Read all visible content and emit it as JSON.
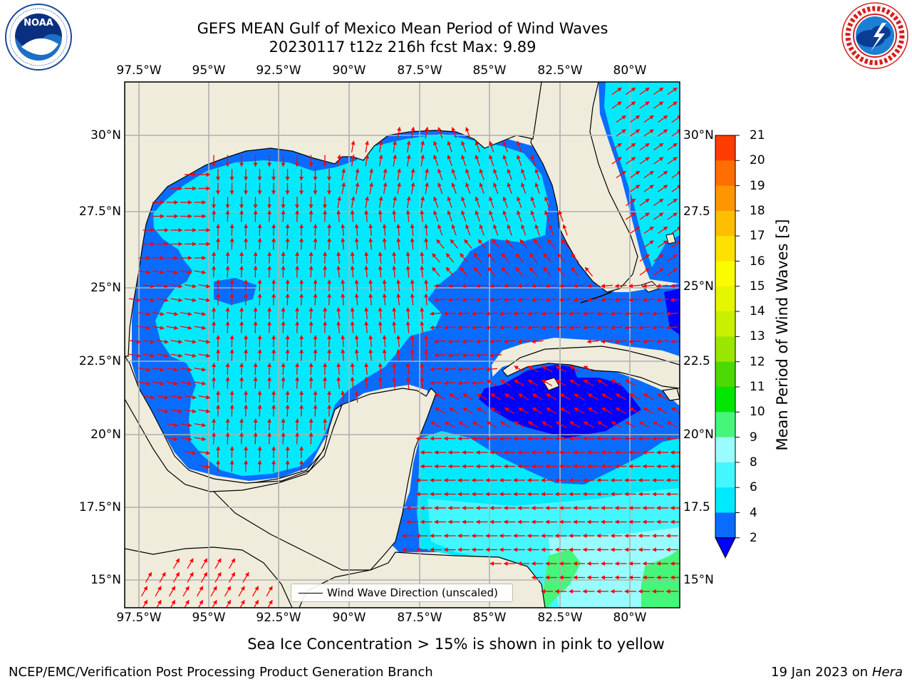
{
  "header": {
    "title_line1": "GEFS MEAN Gulf of Mexico Mean Period of Wind Waves",
    "title_line2": "20230117 t12z 216h fcst   Max: 9.89"
  },
  "logos": {
    "left": "noaa-logo",
    "right": "national-weather-service-logo"
  },
  "map": {
    "region": "Gulf of Mexico",
    "lon_labels": [
      "97.5°W",
      "95°W",
      "92.5°W",
      "90°W",
      "87.5°W",
      "85°W",
      "82.5°W",
      "80°W"
    ],
    "lat_labels_left": [
      "30°N",
      "27.5°N",
      "25°N",
      "22.5°N",
      "20°N",
      "17.5°N",
      "15°N"
    ],
    "lat_labels_right": [
      "30°N",
      "27.5",
      "25°N",
      "22.5",
      "20°N",
      "17.5",
      "15°N"
    ],
    "lon_range": [
      -98,
      -78.2
    ],
    "lat_range": [
      14,
      31.8
    ],
    "arrow_color": "#ff0000",
    "land_color": "#efecdc",
    "legend_label": "Wind Wave Direction (unscaled)"
  },
  "colorbar": {
    "label": "Mean Period of Wind Waves [s]",
    "ticks": [
      "2",
      "4",
      "6",
      "8",
      "9",
      "10",
      "11",
      "12",
      "13",
      "14",
      "15",
      "16",
      "17",
      "18",
      "19",
      "20",
      "21"
    ],
    "colors": [
      "#0a6cff",
      "#00eaff",
      "#44f6ff",
      "#99fcff",
      "#46f67a",
      "#00e600",
      "#4ad900",
      "#99e600",
      "#c8f000",
      "#e6f500",
      "#fcfc00",
      "#ffe100",
      "#ffbe00",
      "#ff9600",
      "#ff6e00",
      "#ff3c00",
      "#ff0000"
    ],
    "under_color": "#0000ff"
  },
  "footer": {
    "note": "Sea Ice Concentration > 15% is shown in pink to yellow",
    "credit_left": "NCEP/EMC/Verification Post Processing Product Generation Branch",
    "credit_date": "19 Jan 2023 on ",
    "credit_host": "Hera"
  }
}
